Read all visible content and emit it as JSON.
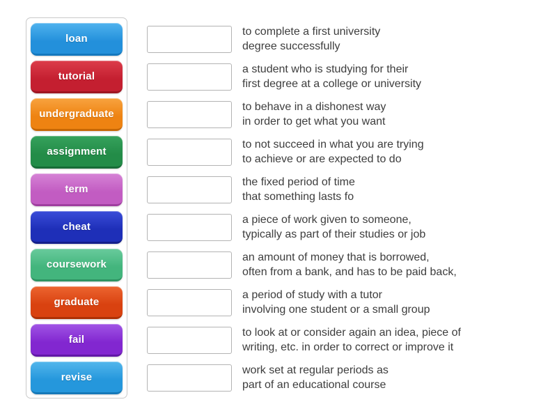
{
  "page": {
    "background_color": "#ffffff",
    "activity_kind": "match-up-exercise"
  },
  "word_bank": {
    "panel_border_color": "#c9c9c9",
    "words": [
      {
        "label": "loan",
        "color": "#2390db",
        "color_light": "#4fb2ee",
        "color_dark": "#1478be"
      },
      {
        "label": "tutorial",
        "color": "#c41f30",
        "color_light": "#dc3d4b",
        "color_dark": "#9e1623"
      },
      {
        "label": "undergraduate",
        "color": "#ee8312",
        "color_light": "#f8a33f",
        "color_dark": "#c66705"
      },
      {
        "label": "assignment",
        "color": "#238c48",
        "color_light": "#36a25c",
        "color_dark": "#176c37"
      },
      {
        "label": "term",
        "color": "#c25cc2",
        "color_light": "#d683d6",
        "color_dark": "#9f3e9f"
      },
      {
        "label": "cheat",
        "color": "#1e2fb8",
        "color_light": "#3a4cd8",
        "color_dark": "#141f8a"
      },
      {
        "label": "coursework",
        "color": "#43b57d",
        "color_light": "#69cb9c",
        "color_dark": "#2e9362"
      },
      {
        "label": "graduate",
        "color": "#d94210",
        "color_light": "#ec6530",
        "color_dark": "#ae3106"
      },
      {
        "label": "fail",
        "color": "#8227d0",
        "color_light": "#a055e5",
        "color_dark": "#6218a6"
      },
      {
        "label": "revise",
        "color": "#2597dc",
        "color_light": "#52b6ec",
        "color_dark": "#1679b8"
      }
    ]
  },
  "definitions": {
    "box_border_color": "#b3b3b3",
    "text_color": "#3d3d3d",
    "items": [
      {
        "text": "to complete a first university\ndegree successfully"
      },
      {
        "text": "a student who is studying for their\nfirst degree at a college or university"
      },
      {
        "text": "to behave in a dishonest way\nin order to get what you want"
      },
      {
        "text": "to not succeed in what you are trying\nto achieve or are expected to do"
      },
      {
        "text": "the fixed period of time\nthat something lasts fo"
      },
      {
        "text": "a piece of work given to someone,\ntypically as part of their studies or job"
      },
      {
        "text": "an amount of money that is borrowed,\noften from a bank, and has to be paid back,"
      },
      {
        "text": "a period of study with a tutor\ninvolving one student or a small group"
      },
      {
        "text": "to look at or consider again an idea, piece of\nwriting, etc. in order to correct or improve it"
      },
      {
        "text": "work set at regular periods as\npart of an educational course"
      }
    ]
  }
}
